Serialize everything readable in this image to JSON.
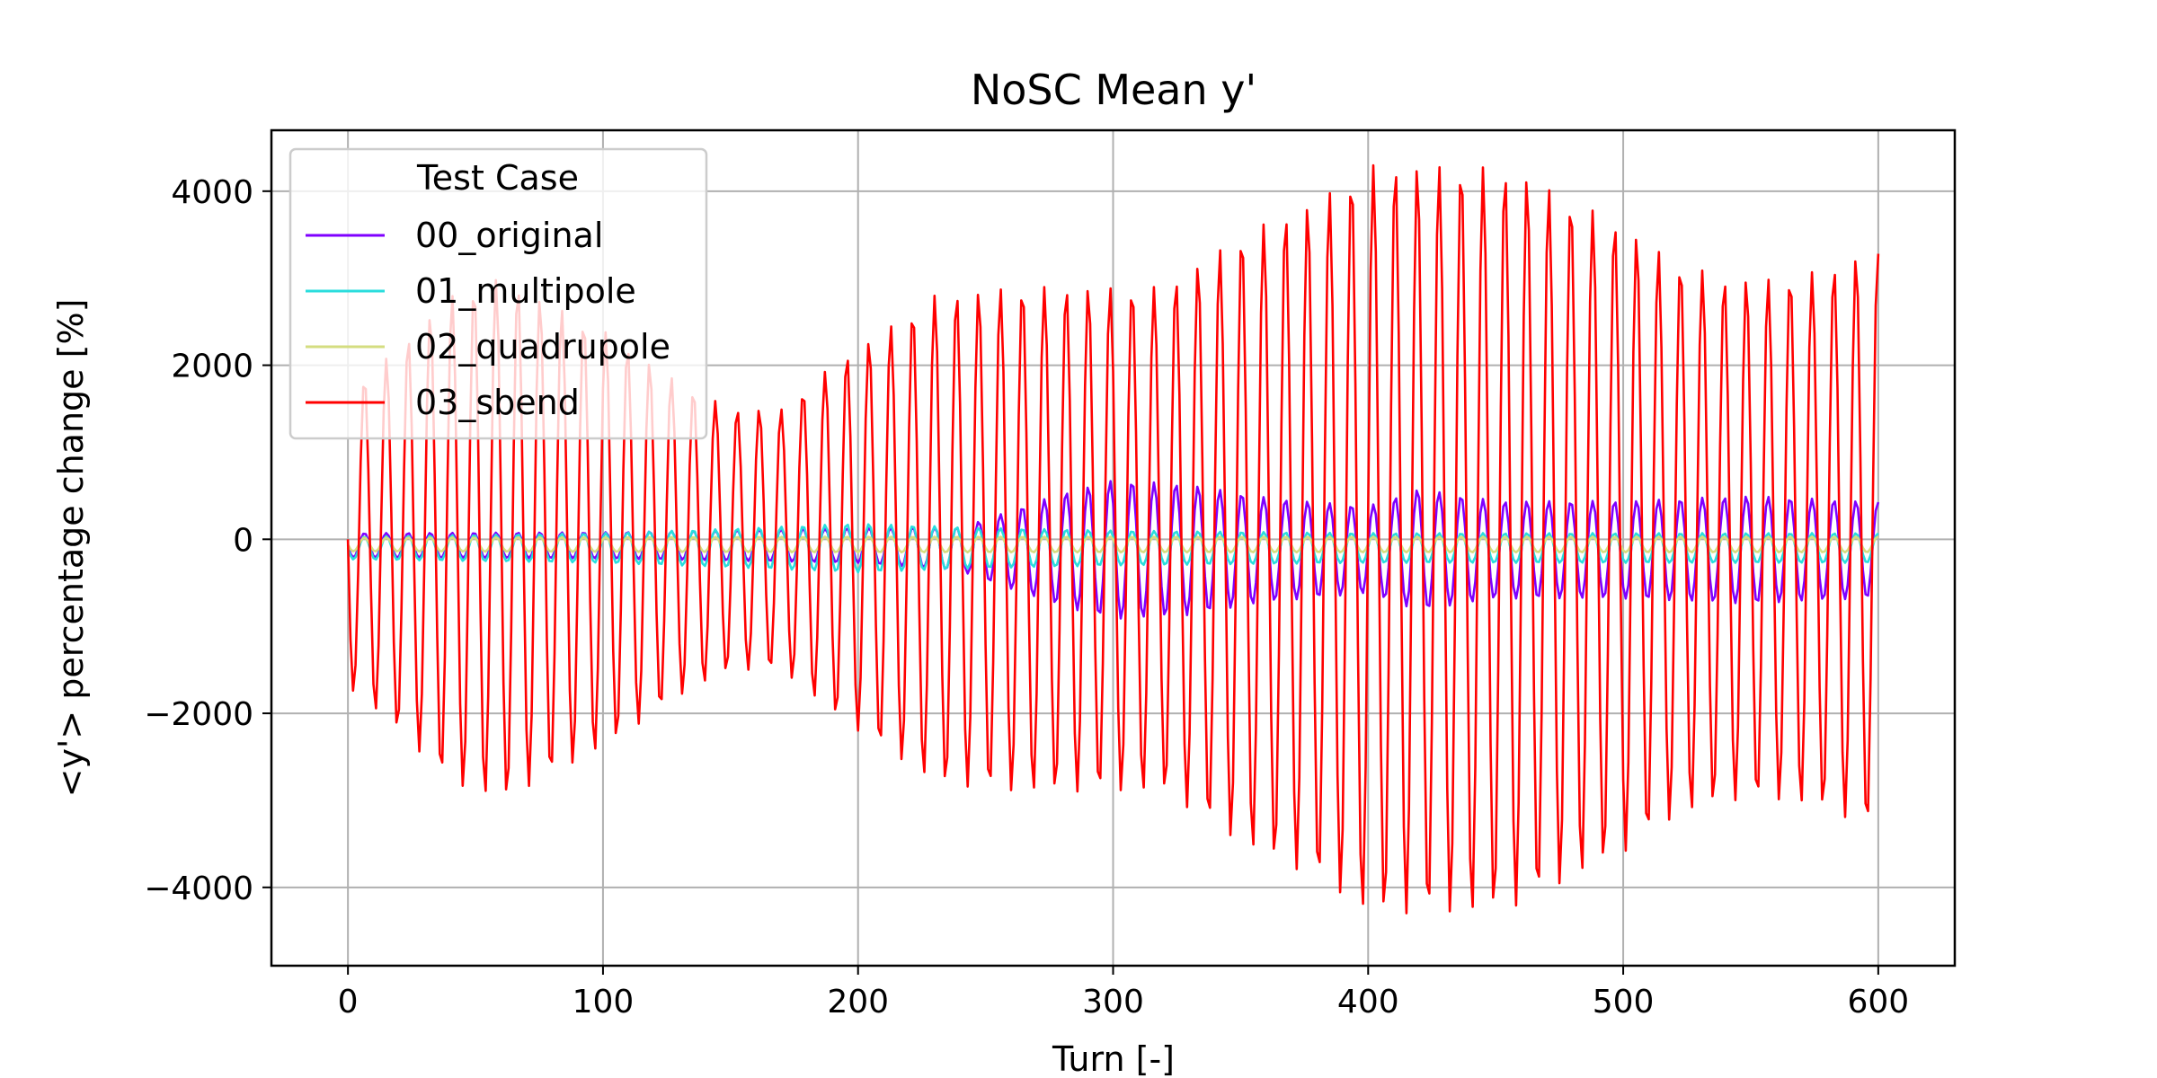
{
  "chart_data": {
    "type": "line",
    "title": "NoSC Mean y'",
    "xlabel": "Turn [-]",
    "ylabel": "<y'> percentage change [%]",
    "xlim": [
      -30,
      630
    ],
    "ylim": [
      -4900,
      4700
    ],
    "xticks": [
      0,
      100,
      200,
      300,
      400,
      500,
      600
    ],
    "yticks": [
      -4000,
      -2000,
      0,
      2000,
      4000
    ],
    "grid": true,
    "legend": {
      "title": "Test Case",
      "placement": "top-left"
    },
    "series": [
      {
        "name": "00_original",
        "color": "#7f00ff",
        "oscillation": {
          "period": 8.6,
          "x_range": [
            0,
            600
          ],
          "offset": [
            [
              0,
              -70
            ],
            [
              200,
              -70
            ],
            [
              250,
              -120
            ],
            [
              600,
              -120
            ]
          ],
          "amplitude": [
            [
              0,
              140
            ],
            [
              100,
              150
            ],
            [
              200,
              200
            ],
            [
              240,
              250
            ],
            [
              280,
              650
            ],
            [
              300,
              800
            ],
            [
              330,
              750
            ],
            [
              360,
              600
            ],
            [
              400,
              500
            ],
            [
              420,
              700
            ],
            [
              450,
              560
            ],
            [
              500,
              560
            ],
            [
              550,
              620
            ],
            [
              600,
              550
            ]
          ]
        }
      },
      {
        "name": "01_multipole",
        "color": "#2adddd",
        "oscillation": {
          "period": 8.6,
          "x_range": [
            0,
            600
          ],
          "offset": [
            [
              0,
              -100
            ],
            [
              300,
              -100
            ],
            [
              600,
              -100
            ]
          ],
          "amplitude": [
            [
              0,
              130
            ],
            [
              100,
              170
            ],
            [
              150,
              220
            ],
            [
              200,
              280
            ],
            [
              250,
              230
            ],
            [
              300,
              200
            ],
            [
              400,
              170
            ],
            [
              500,
              170
            ],
            [
              600,
              170
            ]
          ]
        }
      },
      {
        "name": "02_quadrupole",
        "color": "#d4dd80",
        "oscillation": {
          "period": 8.6,
          "x_range": [
            0,
            600
          ],
          "offset": [
            [
              0,
              -60
            ],
            [
              600,
              -60
            ]
          ],
          "amplitude": [
            [
              0,
              80
            ],
            [
              200,
              90
            ],
            [
              400,
              90
            ],
            [
              600,
              90
            ]
          ]
        }
      },
      {
        "name": "03_sbend",
        "color": "#ff0000",
        "oscillation": {
          "period": 8.6,
          "x_range": [
            0,
            600
          ],
          "offset": [
            [
              0,
              0
            ],
            [
              600,
              0
            ]
          ],
          "amplitude": [
            [
              0,
              1700
            ],
            [
              20,
              2200
            ],
            [
              40,
              2800
            ],
            [
              60,
              3000
            ],
            [
              80,
              2700
            ],
            [
              100,
              2400
            ],
            [
              130,
              1800
            ],
            [
              150,
              1500
            ],
            [
              170,
              1500
            ],
            [
              190,
              2000
            ],
            [
              210,
              2400
            ],
            [
              230,
              2800
            ],
            [
              260,
              2900
            ],
            [
              290,
              2900
            ],
            [
              320,
              2900
            ],
            [
              350,
              3500
            ],
            [
              380,
              3900
            ],
            [
              400,
              4300
            ],
            [
              420,
              4300
            ],
            [
              440,
              4300
            ],
            [
              460,
              4200
            ],
            [
              480,
              3900
            ],
            [
              500,
              3600
            ],
            [
              520,
              3200
            ],
            [
              540,
              3000
            ],
            [
              560,
              3000
            ],
            [
              580,
              3100
            ],
            [
              595,
              3300
            ],
            [
              600,
              3300
            ]
          ]
        }
      }
    ]
  }
}
